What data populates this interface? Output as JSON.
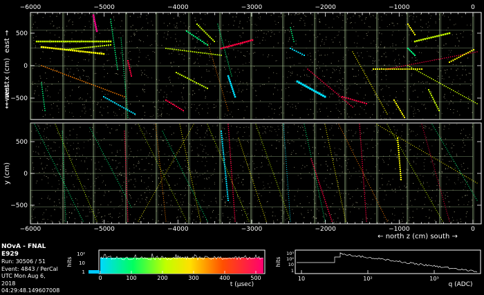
{
  "info": {
    "title": "NOvA - FNAL E929",
    "run": "Run:   30506 / 51",
    "event": "Event: 4843 / PerCal",
    "utc_date": "UTC Mon Aug 6, 2018",
    "utc_time": "04:29:48.149607008"
  },
  "xview": {
    "ylabel": "x (cm)",
    "left_dir": "← west",
    "right_dir": "east →",
    "top_ticks": [
      "−6000",
      "−5000",
      "−4000",
      "−3000",
      "−2000",
      "−1000",
      "0"
    ],
    "yticks": [
      "500",
      "0",
      "−500"
    ]
  },
  "yview": {
    "ylabel": "y (cm)",
    "yticks": [
      "500",
      "0",
      "−500"
    ],
    "bottom_ticks": [
      "−6000",
      "−5000",
      "−4000",
      "−3000",
      "−2000",
      "−1000",
      "0"
    ]
  },
  "zaxis": {
    "label": "← north   z (cm)   south →"
  },
  "time_hist": {
    "ylabel": "hits",
    "xlabel": "t (µsec)",
    "xticks": [
      "0",
      "100",
      "200",
      "300",
      "400",
      "500"
    ],
    "yticks": [
      "10²",
      "10",
      "1"
    ]
  },
  "charge_hist": {
    "ylabel": "hits",
    "xlabel": "q (ADC)",
    "xticks": [
      "10",
      "10²",
      "10³"
    ],
    "yticks": [
      "10³",
      "10²",
      "10",
      "1"
    ]
  },
  "colors": {
    "detector_grid": "#b8d8a0",
    "frame": "#ffffff",
    "noise_hits": "#c8c8a0",
    "palette": [
      "#00e0ff",
      "#00ff80",
      "#c8ff00",
      "#ffff00",
      "#ff8000",
      "#ff0040",
      "#ff0090"
    ]
  }
}
